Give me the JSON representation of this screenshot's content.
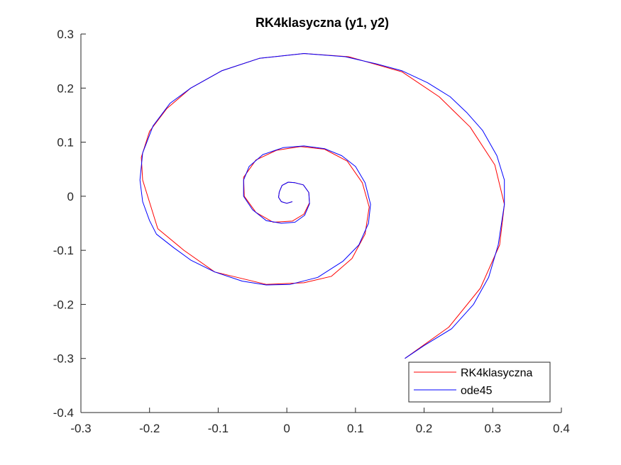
{
  "chart_data": {
    "type": "line",
    "title": "RK4klasyczna (y1, y2)",
    "xlabel": "",
    "ylabel": "",
    "xlim": [
      -0.3,
      0.4
    ],
    "ylim": [
      -0.4,
      0.3
    ],
    "xticks": [
      -0.3,
      -0.2,
      -0.1,
      0,
      0.1,
      0.2,
      0.3,
      0.4
    ],
    "yticks": [
      -0.4,
      -0.3,
      -0.2,
      -0.1,
      0,
      0.1,
      0.2,
      0.3
    ],
    "xtick_labels": [
      "-0.3",
      "-0.2",
      "-0.1",
      "0",
      "0.1",
      "0.2",
      "0.3",
      "0.4"
    ],
    "ytick_labels": [
      "-0.4",
      "-0.3",
      "-0.2",
      "-0.1",
      "0",
      "0.1",
      "0.2",
      "0.3"
    ],
    "grid": false,
    "legend_position": "bottom-right",
    "series": [
      {
        "name": "RK4klasyczna",
        "color": "#ff0000",
        "x": [
          0.172,
          0.236,
          0.282,
          0.31,
          0.317,
          0.303,
          0.267,
          0.222,
          0.168,
          0.09,
          0.025,
          -0.04,
          -0.095,
          -0.14,
          -0.175,
          -0.2,
          -0.212,
          -0.21,
          -0.188,
          -0.15,
          -0.105,
          -0.03,
          0.025,
          0.065,
          0.095,
          0.114,
          0.12,
          0.11,
          0.088,
          0.055,
          0.02,
          -0.015,
          -0.045,
          -0.063,
          -0.062,
          -0.045,
          -0.02,
          0.008,
          0.025,
          0.033,
          0.032,
          0.024,
          0.012,
          0.002,
          -0.007,
          -0.011,
          -0.012,
          -0.008,
          0.0,
          0.008
        ],
        "y": [
          -0.3,
          -0.242,
          -0.17,
          -0.09,
          -0.015,
          0.058,
          0.128,
          0.184,
          0.23,
          0.258,
          0.264,
          0.255,
          0.232,
          0.2,
          0.162,
          0.12,
          0.072,
          0.03,
          -0.06,
          -0.1,
          -0.14,
          -0.163,
          -0.16,
          -0.148,
          -0.115,
          -0.07,
          -0.02,
          0.025,
          0.065,
          0.087,
          0.092,
          0.085,
          0.067,
          0.035,
          0.0,
          -0.03,
          -0.048,
          -0.046,
          -0.033,
          -0.012,
          0.007,
          0.021,
          0.025,
          0.026,
          0.02,
          0.008,
          -0.002,
          -0.01,
          -0.013,
          -0.01
        ]
      },
      {
        "name": "ode45",
        "color": "#0000ff",
        "x": [
          0.172,
          0.2,
          0.24,
          0.272,
          0.294,
          0.308,
          0.317,
          0.317,
          0.306,
          0.285,
          0.262,
          0.238,
          0.205,
          0.168,
          0.13,
          0.085,
          0.025,
          -0.04,
          -0.095,
          -0.14,
          -0.17,
          -0.195,
          -0.21,
          -0.214,
          -0.21,
          -0.2,
          -0.19,
          -0.165,
          -0.14,
          -0.105,
          -0.065,
          -0.03,
          0.005,
          0.045,
          0.082,
          0.105,
          0.119,
          0.122,
          0.114,
          0.1,
          0.08,
          0.055,
          0.025,
          -0.005,
          -0.035,
          -0.055,
          -0.063,
          -0.063,
          -0.05,
          -0.03,
          -0.008,
          0.012,
          0.026,
          0.033,
          0.032,
          0.024,
          0.012,
          0.002,
          -0.007,
          -0.011,
          -0.012,
          -0.008,
          0.0,
          0.008
        ],
        "y": [
          -0.3,
          -0.276,
          -0.245,
          -0.2,
          -0.15,
          -0.09,
          -0.015,
          0.03,
          0.075,
          0.122,
          0.155,
          0.184,
          0.21,
          0.232,
          0.245,
          0.258,
          0.264,
          0.255,
          0.232,
          0.2,
          0.172,
          0.13,
          0.08,
          0.03,
          -0.01,
          -0.045,
          -0.07,
          -0.095,
          -0.118,
          -0.14,
          -0.157,
          -0.164,
          -0.163,
          -0.15,
          -0.12,
          -0.09,
          -0.05,
          -0.015,
          0.025,
          0.055,
          0.075,
          0.088,
          0.093,
          0.09,
          0.077,
          0.055,
          0.03,
          0.0,
          -0.025,
          -0.045,
          -0.05,
          -0.048,
          -0.035,
          -0.014,
          0.007,
          0.021,
          0.025,
          0.026,
          0.02,
          0.008,
          -0.002,
          -0.01,
          -0.013,
          -0.01
        ]
      }
    ]
  }
}
